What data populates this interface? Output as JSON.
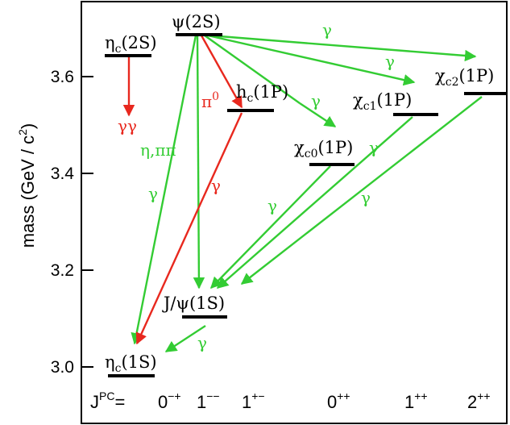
{
  "colors": {
    "frame": "#000000",
    "level": "#000000",
    "gamma_transition": "#33cc33",
    "hadronic_transition": "#e8281e",
    "label_default": "#000000"
  },
  "axis": {
    "title_main": "mass (GeV / c",
    "title_exp": "2",
    "title_close": ")",
    "ticks": [
      {
        "value": 3.0,
        "label": "3.0"
      },
      {
        "value": 3.2,
        "label": "3.2"
      },
      {
        "value": 3.4,
        "label": "3.4"
      },
      {
        "value": 3.6,
        "label": "3.6"
      }
    ]
  },
  "jpc_row": {
    "prefix_base": "J",
    "prefix_sup": "PC",
    "prefix_eq": "=",
    "columns": [
      {
        "base": "0",
        "sup": "−+"
      },
      {
        "base": "1",
        "sup": "−−"
      },
      {
        "base": "1",
        "sup": "+−"
      },
      {
        "base": "0",
        "sup": "++"
      },
      {
        "base": "1",
        "sup": "++"
      },
      {
        "base": "2",
        "sup": "++"
      }
    ]
  },
  "states": [
    {
      "id": "etac2s",
      "base": "η",
      "sub": "c",
      "paren": "(2S)",
      "mass": 3.64
    },
    {
      "id": "psi2s",
      "base": "ψ",
      "sub": "",
      "paren": "(2S)",
      "mass": 3.686
    },
    {
      "id": "hc1p",
      "base": "h",
      "sub": "c",
      "paren": "(1P)",
      "mass": 3.525
    },
    {
      "id": "chic0",
      "base": "χ",
      "sub": "c0",
      "paren": "(1P)",
      "mass": 3.415
    },
    {
      "id": "chic1",
      "base": "χ",
      "sub": "c1",
      "paren": "(1P)",
      "mass": 3.511
    },
    {
      "id": "chic2",
      "base": "χ",
      "sub": "c2",
      "paren": "(1P)",
      "mass": 3.556
    },
    {
      "id": "jpsi",
      "base": "J/ψ",
      "sub": "",
      "paren": "(1S)",
      "mass": 3.097
    },
    {
      "id": "etac1s",
      "base": "η",
      "sub": "c",
      "paren": "(1S)",
      "mass": 2.98
    }
  ],
  "transitions": [
    {
      "id": "etac2s-gg",
      "from": "etac2s",
      "to": "",
      "kind": "hadronic",
      "label": "γγ"
    },
    {
      "id": "psi-etac1s",
      "from": "psi2s",
      "to": "etac1s",
      "kind": "gamma",
      "label": "γ"
    },
    {
      "id": "psi-jpsi",
      "from": "psi2s",
      "to": "jpsi",
      "kind": "gamma",
      "label": "η,ππ"
    },
    {
      "id": "psi-hc",
      "from": "psi2s",
      "to": "hc1p",
      "kind": "hadronic",
      "label": "π",
      "label_sup": "0"
    },
    {
      "id": "psi-chic0",
      "from": "psi2s",
      "to": "chic0",
      "kind": "gamma",
      "label": ""
    },
    {
      "id": "psi-chic1",
      "from": "psi2s",
      "to": "chic1",
      "kind": "gamma",
      "label": "γ"
    },
    {
      "id": "psi-chic2",
      "from": "psi2s",
      "to": "chic2",
      "kind": "gamma",
      "label": "γ"
    },
    {
      "id": "hc-etac1s",
      "from": "hc1p",
      "to": "etac1s",
      "kind": "hadronic",
      "label": "γ"
    },
    {
      "id": "chic0-jpsi",
      "from": "chic0",
      "to": "jpsi",
      "kind": "gamma",
      "label": "γ"
    },
    {
      "id": "chic1-jpsi",
      "from": "chic1",
      "to": "jpsi",
      "kind": "gamma",
      "label": "γ"
    },
    {
      "id": "chic2-jpsi",
      "from": "chic2",
      "to": "jpsi",
      "kind": "gamma",
      "label": "γ"
    },
    {
      "id": "jpsi-etac1s",
      "from": "jpsi",
      "to": "etac1s",
      "kind": "gamma",
      "label": "γ"
    }
  ]
}
